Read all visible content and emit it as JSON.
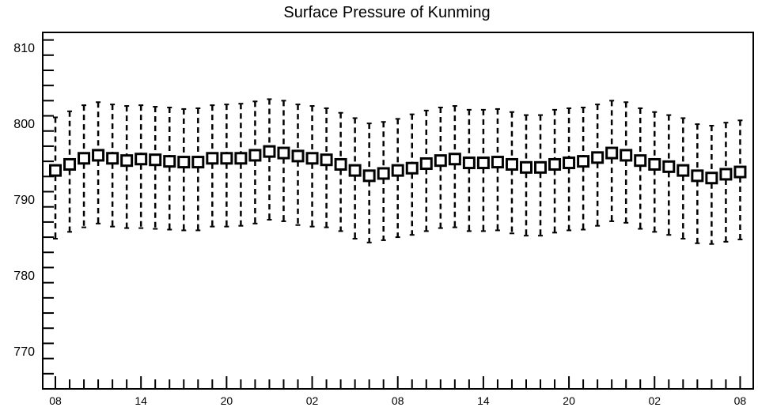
{
  "chart_data": {
    "type": "box",
    "title": "Surface Pressure of Kunming",
    "xlabel": "",
    "ylabel": "",
    "ylim": [
      765.0,
      812.0
    ],
    "yticks": [
      770,
      780,
      790,
      800,
      810
    ],
    "ytick_labels": [
      "770",
      "780",
      "790",
      "800",
      "810"
    ],
    "xtick_labels": [
      "08",
      "14",
      "20",
      "02",
      "08",
      "14",
      "20",
      "02",
      "08"
    ],
    "xtick_interval_steps": 6,
    "n_points": 49,
    "series": [
      {
        "median": [
          793.8,
          794.6,
          795.4,
          795.8,
          795.4,
          795.1,
          795.3,
          795.2,
          795.0,
          794.9,
          794.9,
          795.4,
          795.4,
          795.4,
          795.8,
          796.3,
          796.1,
          795.7,
          795.4,
          795.2,
          794.6,
          793.8,
          793.1,
          793.4,
          793.8,
          794.1,
          794.7,
          795.1,
          795.3,
          794.8,
          794.8,
          794.9,
          794.6,
          794.2,
          794.2,
          794.6,
          794.8,
          795.0,
          795.5,
          796.1,
          795.8,
          795.1,
          794.6,
          794.3,
          793.8,
          793.1,
          792.8,
          793.3,
          793.6
        ],
        "whisker_low": [
          784.8,
          785.7,
          786.3,
          786.8,
          786.4,
          786.2,
          786.2,
          786.1,
          786.0,
          785.9,
          785.9,
          786.4,
          786.4,
          786.5,
          786.8,
          787.3,
          787.1,
          786.6,
          786.4,
          786.3,
          785.8,
          784.8,
          784.3,
          784.6,
          785.0,
          785.3,
          785.8,
          786.2,
          786.3,
          785.8,
          785.8,
          785.9,
          785.5,
          785.2,
          785.2,
          785.6,
          785.9,
          786.0,
          786.5,
          787.1,
          786.9,
          786.1,
          785.7,
          785.3,
          784.8,
          784.2,
          784.1,
          784.4,
          784.7
        ],
        "whisker_high": [
          800.8,
          801.6,
          802.4,
          802.8,
          802.5,
          802.3,
          802.4,
          802.2,
          802.1,
          801.9,
          802.0,
          802.4,
          802.5,
          802.6,
          802.9,
          803.2,
          803.0,
          802.5,
          802.3,
          802.0,
          801.4,
          800.7,
          800.0,
          800.2,
          800.6,
          801.2,
          801.7,
          802.1,
          802.3,
          801.8,
          801.8,
          801.9,
          801.5,
          801.1,
          801.1,
          801.8,
          802.0,
          802.1,
          802.5,
          803.0,
          802.8,
          802.0,
          801.5,
          801.1,
          800.7,
          799.9,
          799.7,
          800.1,
          800.4
        ]
      }
    ],
    "grid": false,
    "legend": "none"
  }
}
